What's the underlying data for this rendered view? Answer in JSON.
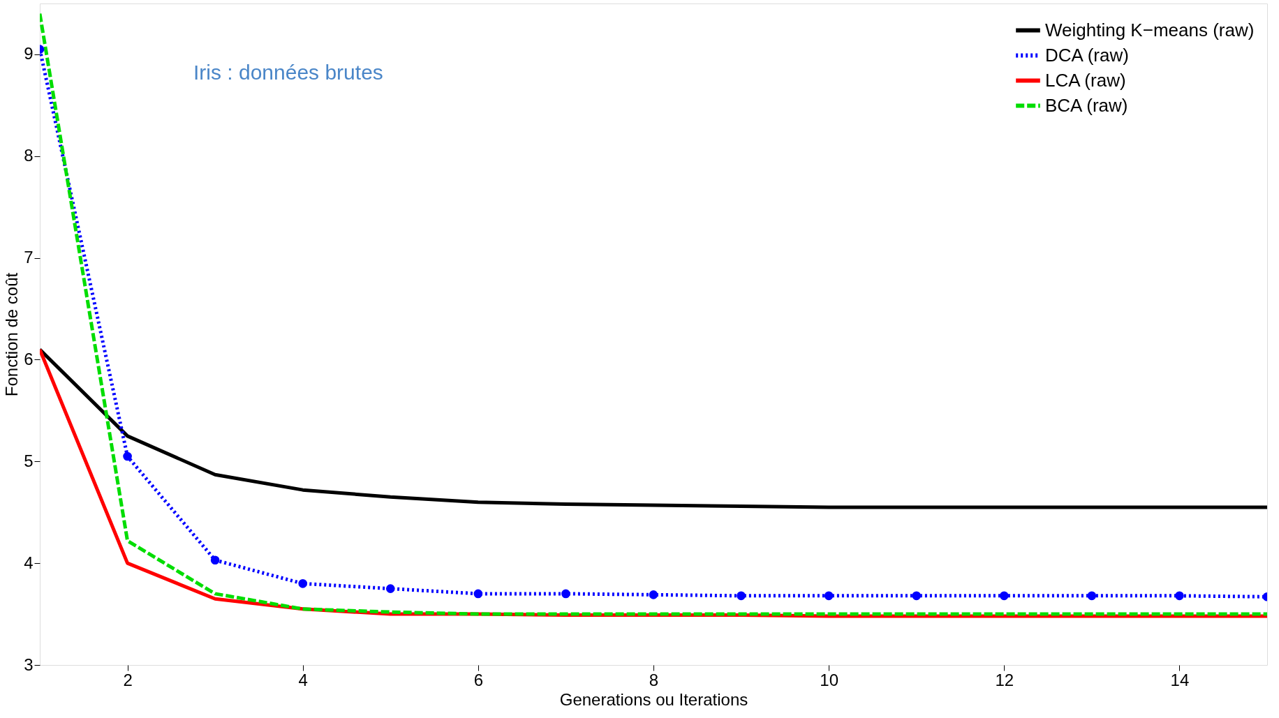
{
  "chart_data": {
    "type": "line",
    "xlabel": "Generations ou Iterations",
    "ylabel": "Fonction de coût",
    "annotations": [
      "Iris : données brutes"
    ],
    "x": [
      1,
      2,
      3,
      4,
      5,
      6,
      7,
      8,
      9,
      10,
      11,
      12,
      13,
      14,
      15
    ],
    "series": [
      {
        "name": "Weighting K−means (raw)",
        "color": "#000000",
        "line_style": "solid",
        "marker": "none",
        "values": [
          6.1,
          5.25,
          4.87,
          4.72,
          4.65,
          4.6,
          4.58,
          4.57,
          4.56,
          4.55,
          4.55,
          4.55,
          4.55,
          4.55,
          4.55
        ]
      },
      {
        "name": "DCA (raw)",
        "color": "#0000ff",
        "line_style": "dotted",
        "marker": "circle",
        "values": [
          9.05,
          5.05,
          4.03,
          3.8,
          3.75,
          3.7,
          3.7,
          3.69,
          3.68,
          3.68,
          3.68,
          3.68,
          3.68,
          3.68,
          3.67
        ]
      },
      {
        "name": "LCA (raw)",
        "color": "#ff0000",
        "line_style": "solid",
        "marker": "none",
        "values": [
          6.1,
          4.0,
          3.65,
          3.55,
          3.5,
          3.5,
          3.49,
          3.49,
          3.49,
          3.48,
          3.48,
          3.48,
          3.48,
          3.48,
          3.48
        ]
      },
      {
        "name": "BCA (raw)",
        "color": "#00dd00",
        "line_style": "dashed",
        "marker": "none",
        "values": [
          9.4,
          4.22,
          3.7,
          3.55,
          3.52,
          3.5,
          3.5,
          3.5,
          3.5,
          3.5,
          3.5,
          3.5,
          3.5,
          3.5,
          3.5
        ]
      }
    ],
    "xlim": [
      1,
      15
    ],
    "xticks": [
      2,
      4,
      6,
      8,
      10,
      12,
      14
    ],
    "ylim": [
      3,
      9.5
    ],
    "yticks": [
      3,
      4,
      5,
      6,
      7,
      8,
      9
    ],
    "grid": false,
    "legend": "top right"
  }
}
